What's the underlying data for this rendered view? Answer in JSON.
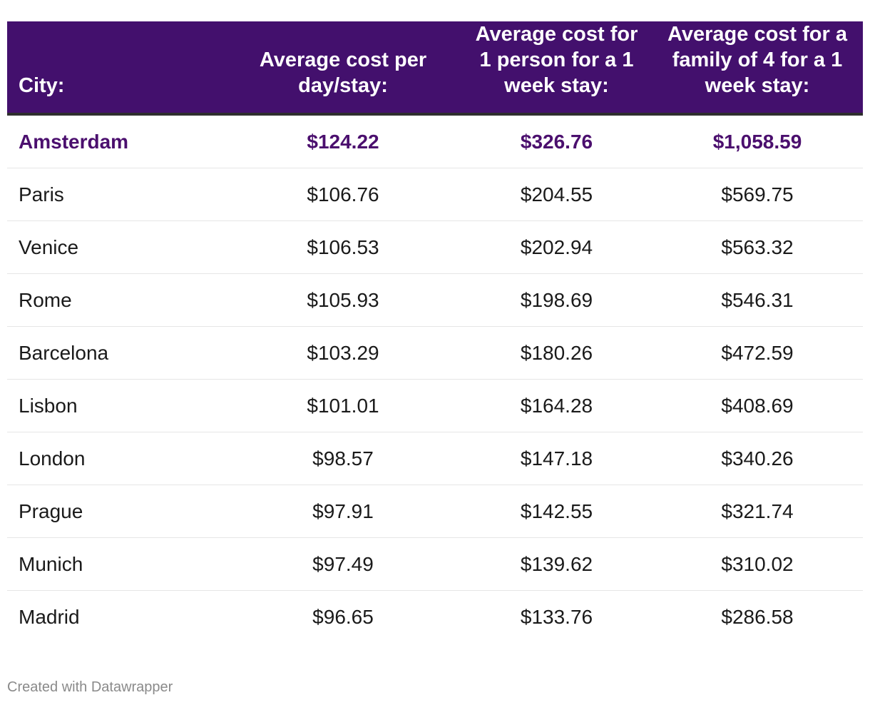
{
  "chart_data": {
    "type": "table",
    "columns": [
      "City:",
      "Average cost per day/stay:",
      "Average cost for 1 person for a 1 week stay:",
      "Average cost for a family of 4 for a 1 week stay:"
    ],
    "rows": [
      [
        "Amsterdam",
        "$124.22",
        "$326.76",
        "$1,058.59"
      ],
      [
        "Paris",
        "$106.76",
        "$204.55",
        "$569.75"
      ],
      [
        "Venice",
        "$106.53",
        "$202.94",
        "$563.32"
      ],
      [
        "Rome",
        "$105.93",
        "$198.69",
        "$546.31"
      ],
      [
        "Barcelona",
        "$103.29",
        "$180.26",
        "$472.59"
      ],
      [
        "Lisbon",
        "$101.01",
        "$164.28",
        "$408.69"
      ],
      [
        "London",
        "$98.57",
        "$147.18",
        "$340.26"
      ],
      [
        "Prague",
        "$97.91",
        "$142.55",
        "$321.74"
      ],
      [
        "Munich",
        "$97.49",
        "$139.62",
        "$310.02"
      ],
      [
        "Madrid",
        "$96.65",
        "$133.76",
        "$286.58"
      ]
    ],
    "highlighted_row": "Amsterdam"
  },
  "colors": {
    "header_background": "#43106d",
    "header_text": "#ffffff",
    "highlight_text": "#4b0f6e",
    "body_text": "#1a1a1a",
    "footer_text": "#8a8a8a"
  },
  "footer": {
    "credit": "Created with Datawrapper"
  }
}
